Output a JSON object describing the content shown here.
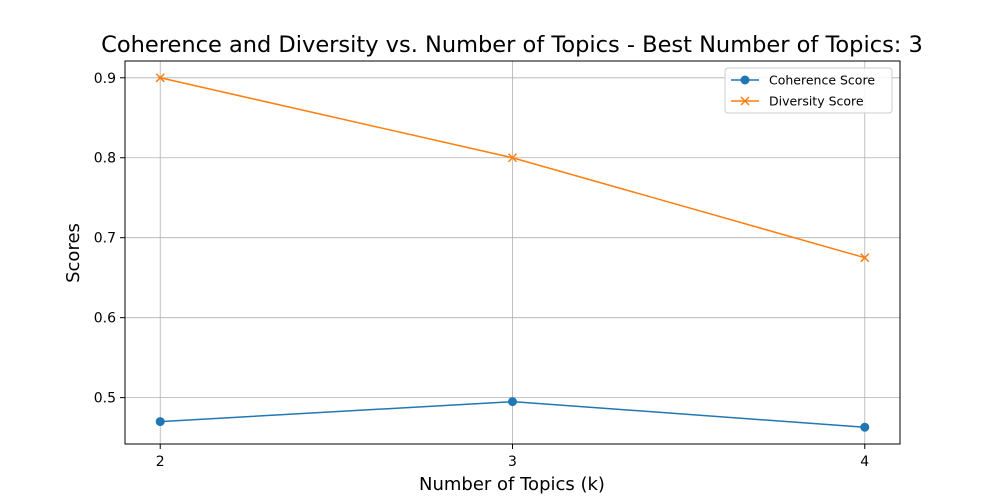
{
  "chart_data": {
    "type": "line",
    "title": "Coherence and Diversity vs. Number of Topics - Best Number of Topics: 3",
    "xlabel": "Number of Topics (k)",
    "ylabel": "Scores",
    "x": [
      2,
      3,
      4
    ],
    "xticks": [
      "2",
      "3",
      "4"
    ],
    "yticks": [
      "0.5",
      "0.6",
      "0.7",
      "0.8",
      "0.9"
    ],
    "ylim": [
      0.442,
      0.921
    ],
    "xlim": [
      1.9,
      4.1
    ],
    "grid": true,
    "legend_position": "top-right",
    "series": [
      {
        "name": "Coherence Score",
        "values": [
          0.47,
          0.495,
          0.463
        ],
        "color": "#1f77b4",
        "marker": "circle"
      },
      {
        "name": "Diversity Score",
        "values": [
          0.9,
          0.8,
          0.675
        ],
        "color": "#ff7f0e",
        "marker": "x"
      }
    ]
  }
}
